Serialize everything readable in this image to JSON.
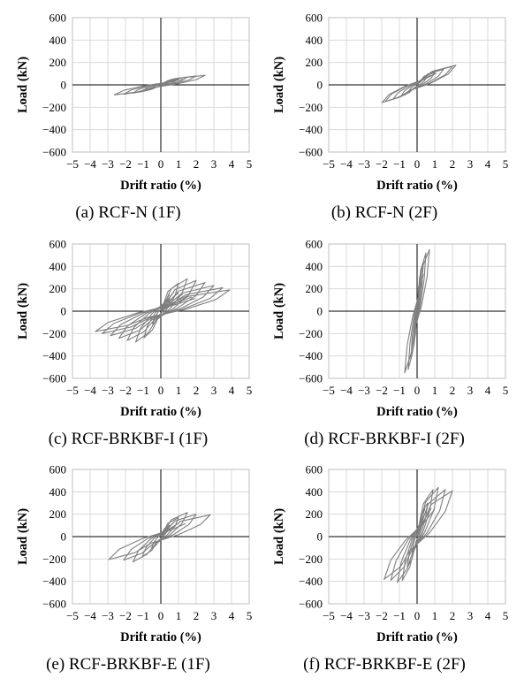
{
  "chart_data": [
    {
      "type": "line",
      "caption": "(a) RCF-N (1F)",
      "xlabel": "Drift ratio (%)",
      "ylabel": "Load (kN)",
      "xlim": [
        -5,
        5
      ],
      "ylim": [
        -600,
        600
      ],
      "xticks": [
        -5,
        -4,
        -3,
        -2,
        -1,
        0,
        1,
        2,
        3,
        4,
        5
      ],
      "yticks": [
        -600,
        -400,
        -200,
        0,
        200,
        400,
        600
      ],
      "grid": true,
      "series": [
        {
          "loops": [
            [
              0.5,
              30
            ],
            [
              1.0,
              55
            ],
            [
              1.5,
              70
            ],
            [
              2.0,
              80
            ],
            [
              2.5,
              85
            ]
          ],
          "neg_scale": 1.05
        }
      ]
    },
    {
      "type": "line",
      "caption": "(b) RCF-N (2F)",
      "xlabel": "Drift ratio (%)",
      "ylabel": "Load (kN)",
      "xlim": [
        -5,
        5
      ],
      "ylim": [
        -600,
        600
      ],
      "xticks": [
        -5,
        -4,
        -3,
        -2,
        -1,
        0,
        1,
        2,
        3,
        4,
        5
      ],
      "yticks": [
        -600,
        -400,
        -200,
        0,
        200,
        400,
        600
      ],
      "grid": true,
      "series": [
        {
          "loops": [
            [
              0.5,
              60
            ],
            [
              1.0,
              110
            ],
            [
              1.5,
              140
            ],
            [
              2.0,
              165
            ],
            [
              2.2,
              175
            ]
          ],
          "neg_scale": 0.9
        }
      ]
    },
    {
      "type": "line",
      "caption": "(c) RCF-BRKBF-I (1F)",
      "xlabel": "Drift ratio (%)",
      "ylabel": "Load (kN)",
      "xlim": [
        -5,
        5
      ],
      "ylim": [
        -600,
        600
      ],
      "xticks": [
        -5,
        -4,
        -3,
        -2,
        -1,
        0,
        1,
        2,
        3,
        4,
        5
      ],
      "yticks": [
        -600,
        -400,
        -200,
        0,
        200,
        400,
        600
      ],
      "grid": true,
      "series": [
        {
          "loops": [
            [
              0.5,
              120
            ],
            [
              1.0,
              250
            ],
            [
              1.5,
              290
            ],
            [
              2.0,
              275
            ],
            [
              2.5,
              255
            ],
            [
              3.0,
              230
            ],
            [
              3.5,
              210
            ],
            [
              3.9,
              190
            ]
          ],
          "neg_scale": 0.95
        }
      ]
    },
    {
      "type": "line",
      "caption": "(d) RCF-BRKBF-I (2F)",
      "xlabel": "Drift ratio (%)",
      "ylabel": "Load (kN)",
      "xlim": [
        -5,
        5
      ],
      "ylim": [
        -600,
        600
      ],
      "xticks": [
        -5,
        -4,
        -3,
        -2,
        -1,
        0,
        1,
        2,
        3,
        4,
        5
      ],
      "yticks": [
        -600,
        -400,
        -200,
        0,
        200,
        400,
        600
      ],
      "grid": true,
      "series": [
        {
          "loops": [
            [
              0.1,
              150
            ],
            [
              0.2,
              300
            ],
            [
              0.35,
              430
            ],
            [
              0.5,
              520
            ],
            [
              0.7,
              550
            ]
          ],
          "neg_scale": 1.0
        }
      ]
    },
    {
      "type": "line",
      "caption": "(e) RCF-BRKBF-E (1F)",
      "xlabel": "Drift ratio (%)",
      "ylabel": "Load (kN)",
      "xlim": [
        -5,
        5
      ],
      "ylim": [
        -600,
        600
      ],
      "xticks": [
        -5,
        -4,
        -3,
        -2,
        -1,
        0,
        1,
        2,
        3,
        4,
        5
      ],
      "yticks": [
        -600,
        -400,
        -200,
        0,
        200,
        400,
        600
      ],
      "grid": true,
      "series": [
        {
          "loops": [
            [
              0.5,
              100
            ],
            [
              1.0,
              170
            ],
            [
              1.5,
              215
            ],
            [
              2.0,
              200
            ],
            [
              2.8,
              195
            ]
          ],
          "neg_scale": 1.05
        }
      ]
    },
    {
      "type": "line",
      "caption": "(f) RCF-BRKBF-E (2F)",
      "xlabel": "Drift ratio (%)",
      "ylabel": "Load (kN)",
      "xlim": [
        -5,
        5
      ],
      "ylim": [
        -600,
        600
      ],
      "xticks": [
        -5,
        -4,
        -3,
        -2,
        -1,
        0,
        1,
        2,
        3,
        4,
        5
      ],
      "yticks": [
        -600,
        -400,
        -200,
        0,
        200,
        400,
        600
      ],
      "grid": true,
      "series": [
        {
          "loops": [
            [
              0.3,
              150
            ],
            [
              0.6,
              300
            ],
            [
              0.9,
              420
            ],
            [
              1.2,
              440
            ],
            [
              1.6,
              420
            ],
            [
              2.0,
              410
            ]
          ],
          "neg_scale": 0.93
        }
      ]
    }
  ]
}
